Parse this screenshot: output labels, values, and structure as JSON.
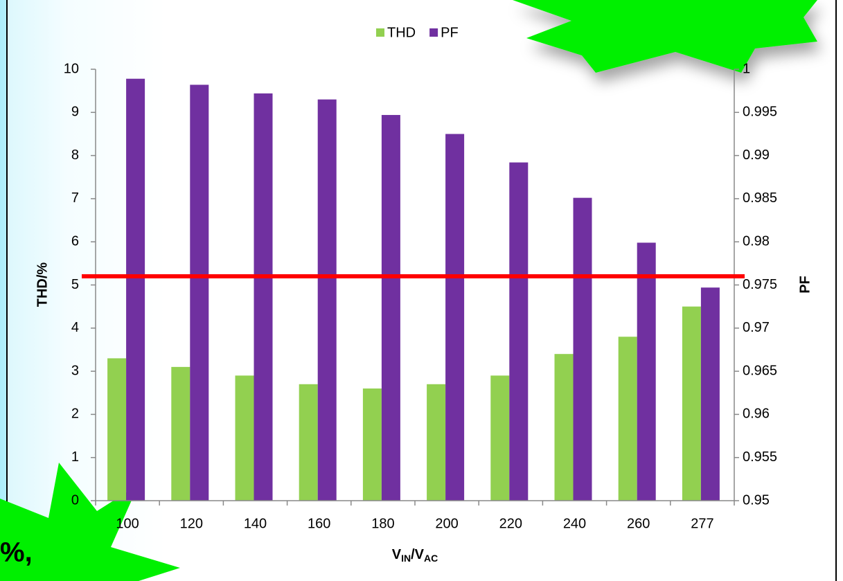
{
  "chart_data": {
    "type": "bar",
    "legend": "top",
    "categories": [
      "100",
      "120",
      "140",
      "160",
      "180",
      "200",
      "220",
      "240",
      "260",
      "277"
    ],
    "series": [
      {
        "name": "THD",
        "color": "#92d050",
        "values": [
          3.3,
          3.1,
          2.9,
          2.7,
          2.6,
          2.7,
          2.9,
          3.4,
          3.8,
          4.5
        ]
      },
      {
        "name": "PF",
        "color": "#7030a0",
        "axis": "y2",
        "values": [
          0.9989,
          0.9982,
          0.9972,
          0.9965,
          0.9947,
          0.9925,
          0.9892,
          0.9851,
          0.9799,
          0.9747
        ]
      }
    ],
    "ylabel": "THD/%",
    "y2label": "PF",
    "xlabel": {
      "v1": "V",
      "sub1": "IN",
      "v2": "/V",
      "sub2": "AC"
    },
    "ylim": [
      0,
      10
    ],
    "yticks": [
      0,
      1,
      2,
      3,
      4,
      5,
      6,
      7,
      8,
      9,
      10
    ],
    "y2lim": [
      0.95,
      1
    ],
    "y2ticks": [
      0.95,
      0.955,
      0.96,
      0.965,
      0.97,
      0.975,
      0.98,
      0.985,
      0.99,
      0.995,
      1
    ],
    "reference_line": {
      "value": 5.2,
      "color": "#ff0000"
    }
  },
  "callout": {
    "text": "%,"
  }
}
